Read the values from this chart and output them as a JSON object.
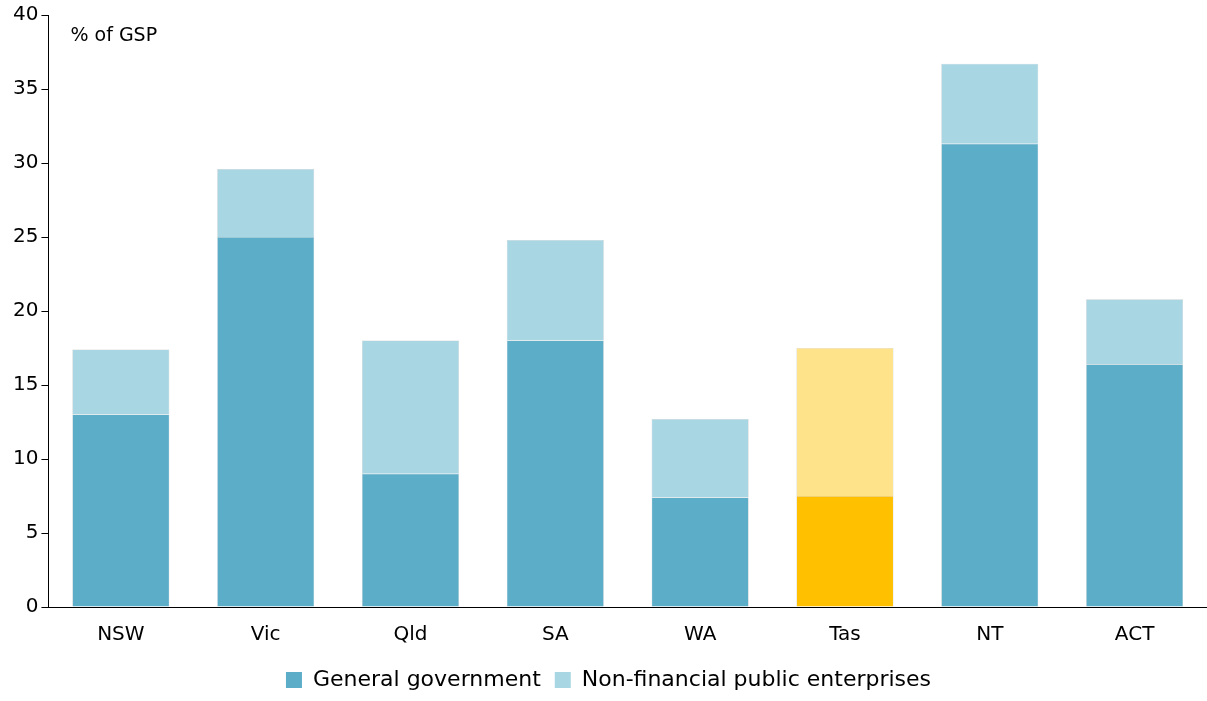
{
  "chart_data": {
    "type": "bar",
    "stacked": true,
    "ylabel": "% of GSP",
    "categories": [
      "NSW",
      "Vic",
      "Qld",
      "SA",
      "WA",
      "Tas",
      "NT",
      "ACT"
    ],
    "series": [
      {
        "name": "General government",
        "color": "#5badc8",
        "colors": [
          "#5badc8",
          "#5badc8",
          "#5badc8",
          "#5badc8",
          "#5badc8",
          "#ffc000",
          "#5badc8",
          "#5badc8"
        ],
        "values": [
          13.0,
          25.0,
          9.0,
          18.0,
          7.4,
          7.5,
          31.3,
          16.4
        ]
      },
      {
        "name": "Non-financial public enterprises",
        "color": "#a9d6e3",
        "colors": [
          "#a9d6e3",
          "#a9d6e3",
          "#a9d6e3",
          "#a9d6e3",
          "#a9d6e3",
          "#ffe38a",
          "#a9d6e3",
          "#a9d6e3"
        ],
        "values": [
          4.4,
          4.6,
          9.0,
          6.8,
          5.3,
          10.0,
          5.4,
          4.4
        ]
      }
    ],
    "ylim": [
      0,
      40
    ],
    "yticks": [
      0,
      5,
      10,
      15,
      20,
      25,
      30,
      35,
      40
    ],
    "grid": false,
    "legend": "bottom"
  }
}
